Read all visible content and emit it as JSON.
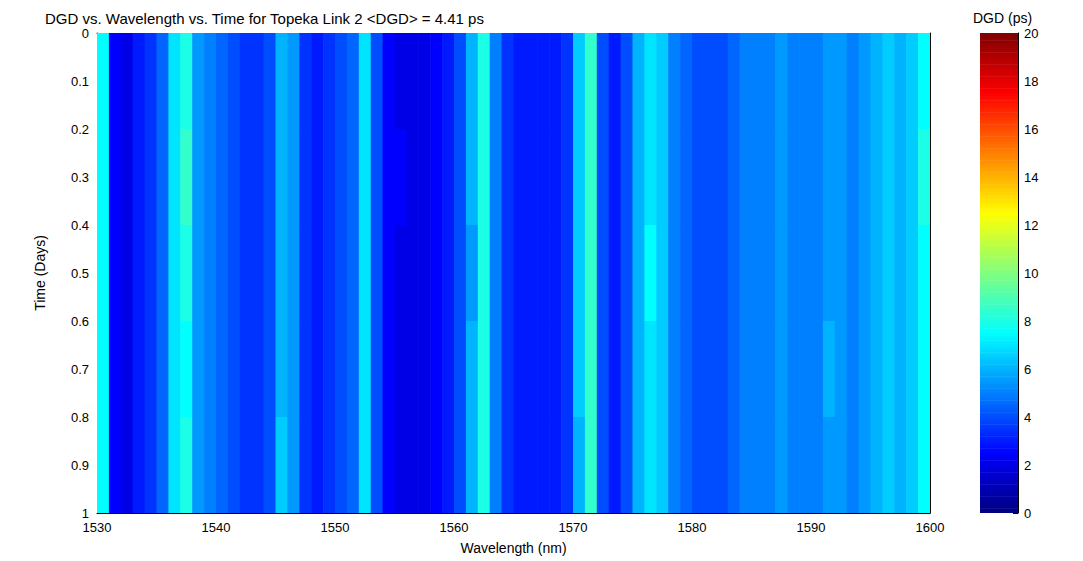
{
  "chart_data": {
    "type": "heatmap",
    "title": "DGD vs. Wavelength vs. Time for Topeka Link 2 <DGD> = 4.41 ps",
    "xlabel": "Wavelength (nm)",
    "ylabel": "Time (Days)",
    "xlim": [
      1530,
      1600
    ],
    "xticks": [
      1530,
      1540,
      1550,
      1560,
      1570,
      1580,
      1590,
      1600
    ],
    "ylim": [
      1,
      0
    ],
    "yticks": [
      0,
      0.1,
      0.2,
      0.3,
      0.4,
      0.5,
      0.6,
      0.7,
      0.8,
      0.9,
      1
    ],
    "x_bins": [
      1530,
      1531,
      1532,
      1533,
      1534,
      1535,
      1536,
      1537,
      1538,
      1539,
      1540,
      1541,
      1542,
      1543,
      1544,
      1545,
      1546,
      1547,
      1548,
      1549,
      1550,
      1551,
      1552,
      1553,
      1554,
      1555,
      1556,
      1557,
      1558,
      1559,
      1560,
      1561,
      1562,
      1563,
      1564,
      1565,
      1566,
      1567,
      1568,
      1569,
      1570,
      1571,
      1572,
      1573,
      1574,
      1575,
      1576,
      1577,
      1578,
      1579,
      1580,
      1581,
      1582,
      1583,
      1584,
      1585,
      1586,
      1587,
      1588,
      1589,
      1590,
      1591,
      1592,
      1593,
      1594,
      1595,
      1596,
      1597,
      1598,
      1599,
      1600
    ],
    "y_bins": [
      0,
      0.2,
      0.4,
      0.6,
      0.8,
      1
    ],
    "values": [
      [
        7.5,
        2.5,
        2,
        3,
        3.5,
        4.5,
        7,
        8,
        5.5,
        5,
        4.5,
        4,
        3.5,
        3.5,
        4,
        6,
        5.5,
        3.5,
        3,
        3.5,
        4,
        4.5,
        7,
        4,
        2.5,
        2,
        2,
        2,
        2.5,
        3,
        4,
        6,
        8,
        5,
        3.5,
        3,
        3,
        3,
        3,
        3.5,
        6.5,
        8.5,
        4,
        3,
        4,
        6,
        7,
        6.5,
        5,
        4.5,
        4,
        4,
        4,
        4.5,
        5,
        5,
        5,
        5.5,
        5,
        5,
        5,
        5.5,
        5.5,
        5,
        5.5,
        6,
        6.5,
        6,
        6.5,
        7.5
      ],
      [
        7.5,
        2.5,
        2,
        3,
        3.5,
        4.5,
        7,
        8.5,
        5.5,
        5,
        4.5,
        4,
        3.5,
        3.5,
        4,
        6,
        5.5,
        3.5,
        3,
        3.5,
        4,
        4.5,
        7,
        4,
        2.5,
        2.5,
        2,
        2,
        2.5,
        3,
        4,
        6,
        8,
        5,
        3.5,
        3,
        3,
        3,
        3,
        3.5,
        6.5,
        8.5,
        4,
        3,
        4,
        6,
        7,
        6.5,
        5,
        4.5,
        4,
        4,
        4,
        4.5,
        5,
        5,
        5,
        5.5,
        5,
        5,
        5,
        5.5,
        5.5,
        5,
        5.5,
        6,
        6.5,
        6,
        6.5,
        8
      ],
      [
        7.5,
        2.5,
        2,
        3,
        3.5,
        4.5,
        7,
        8,
        5.5,
        5,
        4.5,
        4,
        3.5,
        3.5,
        4,
        6,
        5.5,
        3.5,
        3,
        3.5,
        4,
        4.5,
        7,
        4,
        2.5,
        2,
        2,
        2,
        2.5,
        3,
        4,
        5.5,
        8,
        5,
        3.5,
        3,
        3,
        3,
        3,
        3.5,
        6.5,
        8.5,
        4,
        3,
        4,
        6,
        7.5,
        6.5,
        5,
        4.5,
        4,
        4,
        4,
        4.5,
        5,
        5,
        5,
        5.5,
        5,
        5,
        5,
        5.5,
        5.5,
        5,
        5.5,
        6,
        6.5,
        6,
        6.5,
        7.5
      ],
      [
        7.5,
        2.5,
        2,
        3,
        3.5,
        4.5,
        7,
        7.5,
        5.5,
        5,
        4.5,
        4,
        3.5,
        3.5,
        4,
        6,
        5.5,
        3.5,
        3,
        3.5,
        4,
        4.5,
        7,
        4,
        2.5,
        2,
        2,
        2,
        2.5,
        3,
        4,
        6,
        8,
        5,
        3.5,
        3,
        3,
        3,
        3,
        3.5,
        6.5,
        8.5,
        4,
        3,
        4,
        6,
        7,
        6.5,
        5,
        4.5,
        4,
        4,
        4,
        4.5,
        5,
        5,
        5,
        5.5,
        5,
        5,
        5,
        6,
        5.5,
        5,
        5.5,
        6,
        6.5,
        6,
        6.5,
        7.5
      ],
      [
        7.5,
        2.5,
        2,
        3,
        3.5,
        4.5,
        7,
        8,
        5.5,
        5,
        4.5,
        4,
        3.5,
        3.5,
        4,
        6.5,
        5.5,
        3.5,
        3,
        3.5,
        4,
        4.5,
        7,
        4,
        2.5,
        2,
        2,
        2,
        2.5,
        3,
        4,
        6,
        8,
        5,
        3.5,
        3,
        3,
        3,
        3,
        3.5,
        6,
        8.5,
        4,
        3,
        4,
        6,
        7,
        6.5,
        5,
        4.5,
        4,
        4,
        4,
        4.5,
        5,
        5,
        5,
        5.5,
        5,
        5,
        5,
        5.5,
        5.5,
        5,
        5.5,
        6,
        6.5,
        6,
        6.5,
        7.5
      ]
    ],
    "colorbar": {
      "label": "DGD (ps)",
      "range": [
        0,
        20
      ],
      "ticks": [
        0,
        2,
        4,
        6,
        8,
        10,
        12,
        14,
        16,
        18,
        20
      ]
    }
  }
}
